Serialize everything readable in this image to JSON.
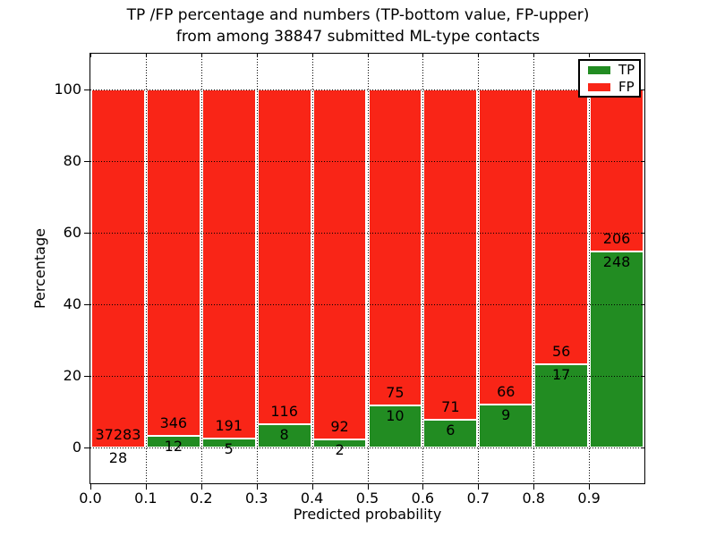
{
  "title": {
    "line1": "TP /FP percentage and numbers (TP-bottom value, FP-upper)",
    "line2": "from among 38847 submitted ML-type contacts"
  },
  "legend": {
    "items": [
      {
        "label": "TP",
        "color": "#228c22"
      },
      {
        "label": "FP",
        "color": "#f92517"
      }
    ]
  },
  "chart_data": {
    "type": "bar",
    "stacked": true,
    "title": "TP /FP percentage and numbers (TP-bottom value, FP-upper) from among 38847 submitted ML-type contacts",
    "xlabel": "Predicted probability",
    "ylabel": "Percentage",
    "x_bin_edges": [
      0.0,
      0.1,
      0.2,
      0.3,
      0.4,
      0.5,
      0.6,
      0.7,
      0.8,
      0.9,
      1.0
    ],
    "series": [
      {
        "name": "TP",
        "color": "#228c22",
        "values": [
          28,
          12,
          5,
          8,
          2,
          10,
          6,
          9,
          17,
          248
        ]
      },
      {
        "name": "FP",
        "color": "#f92517",
        "values": [
          37283,
          346,
          191,
          116,
          92,
          75,
          71,
          66,
          56,
          206
        ]
      }
    ],
    "bar_value_meaning": "counts labeled on bars; bar heights are percentage of each bin total (TP bottom, FP upper), each stack totals 100%",
    "total_contacts": 38847,
    "xticks": [
      "0.0",
      "0.1",
      "0.2",
      "0.3",
      "0.4",
      "0.5",
      "0.6",
      "0.7",
      "0.8",
      "0.9"
    ],
    "yticks": [
      0,
      20,
      40,
      60,
      80,
      100
    ],
    "ytick_labels": [
      "0",
      "20",
      "40",
      "60",
      "80",
      "100"
    ],
    "xlim": [
      0,
      1
    ],
    "ylim": [
      -10,
      110
    ],
    "grid": "dotted",
    "legend_position": "upper right",
    "bar_edge_color": "#ffffff"
  }
}
